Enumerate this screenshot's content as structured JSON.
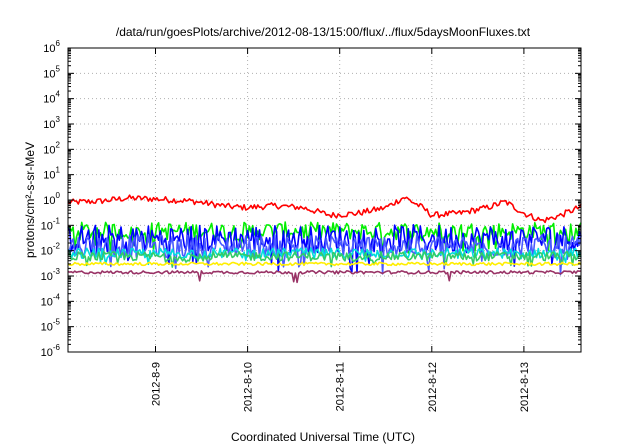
{
  "chart_data": {
    "type": "line",
    "title": "/data/run/goesPlots/archive/2012-08-13/15:00/flux/../flux/5daysMoonFluxes.txt",
    "xlabel": "Coordinated Universal Time (UTC)",
    "ylabel": "protons/cm²-s-sr-MeV",
    "yscale": "log",
    "ylim": [
      1e-06,
      1000000.0
    ],
    "xlim": [
      8.05,
      13.62
    ],
    "grid": true,
    "x_ticks": [
      {
        "x": 9,
        "label": "2012-8-9"
      },
      {
        "x": 10,
        "label": "2012-8-10"
      },
      {
        "x": 11,
        "label": "2012-8-11"
      },
      {
        "x": 12,
        "label": "2012-8-12"
      },
      {
        "x": 13,
        "label": "2012-8-13"
      }
    ],
    "y_ticks": [
      {
        "exp": 6,
        "label": "10",
        "sup": "6"
      },
      {
        "exp": 5,
        "label": "10",
        "sup": "5"
      },
      {
        "exp": 4,
        "label": "10",
        "sup": "4"
      },
      {
        "exp": 3,
        "label": "10",
        "sup": "3"
      },
      {
        "exp": 2,
        "label": "10",
        "sup": "2"
      },
      {
        "exp": 1,
        "label": "10",
        "sup": "1"
      },
      {
        "exp": 0,
        "label": "10",
        "sup": "0"
      },
      {
        "exp": -1,
        "label": "10",
        "sup": "-1"
      },
      {
        "exp": -2,
        "label": "10",
        "sup": "-2"
      },
      {
        "exp": -3,
        "label": "10",
        "sup": "-3"
      },
      {
        "exp": -4,
        "label": "10",
        "sup": "-4"
      },
      {
        "exp": -5,
        "label": "10",
        "sup": "-5"
      },
      {
        "exp": -6,
        "label": "10",
        "sup": "-6"
      }
    ],
    "series": [
      {
        "color": "#ff0000",
        "base": 0.8,
        "noise": 0.12,
        "profile": [
          [
            8.05,
            0.8
          ],
          [
            8.4,
            0.9
          ],
          [
            8.7,
            1.2
          ],
          [
            9.0,
            1.1
          ],
          [
            9.4,
            0.9
          ],
          [
            9.8,
            0.55
          ],
          [
            10.0,
            0.5
          ],
          [
            10.3,
            0.6
          ],
          [
            10.6,
            0.5
          ],
          [
            10.9,
            0.25
          ],
          [
            11.2,
            0.3
          ],
          [
            11.5,
            0.5
          ],
          [
            11.7,
            1.3
          ],
          [
            11.9,
            0.5
          ],
          [
            12.0,
            0.25
          ],
          [
            12.3,
            0.3
          ],
          [
            12.6,
            0.5
          ],
          [
            12.8,
            0.85
          ],
          [
            13.0,
            0.3
          ],
          [
            13.2,
            0.15
          ],
          [
            13.4,
            0.25
          ],
          [
            13.62,
            0.55
          ]
        ]
      },
      {
        "color": "#00ee00",
        "base": 0.06,
        "noise": 0.35,
        "profile": []
      },
      {
        "color": "#0000ff",
        "base": 0.03,
        "noise": 0.55,
        "profile": []
      },
      {
        "color": "#4a5aff",
        "base": 0.015,
        "noise": 0.45,
        "profile": []
      },
      {
        "color": "#00dddd",
        "base": 0.008,
        "noise": 0.2,
        "profile": []
      },
      {
        "color": "#33cc66",
        "base": 0.006,
        "noise": 0.18,
        "profile": []
      },
      {
        "color": "#ffee00",
        "base": 0.003,
        "noise": 0.06,
        "profile": []
      },
      {
        "color": "#993366",
        "base": 0.0014,
        "noise": 0.06,
        "profile": []
      }
    ]
  }
}
